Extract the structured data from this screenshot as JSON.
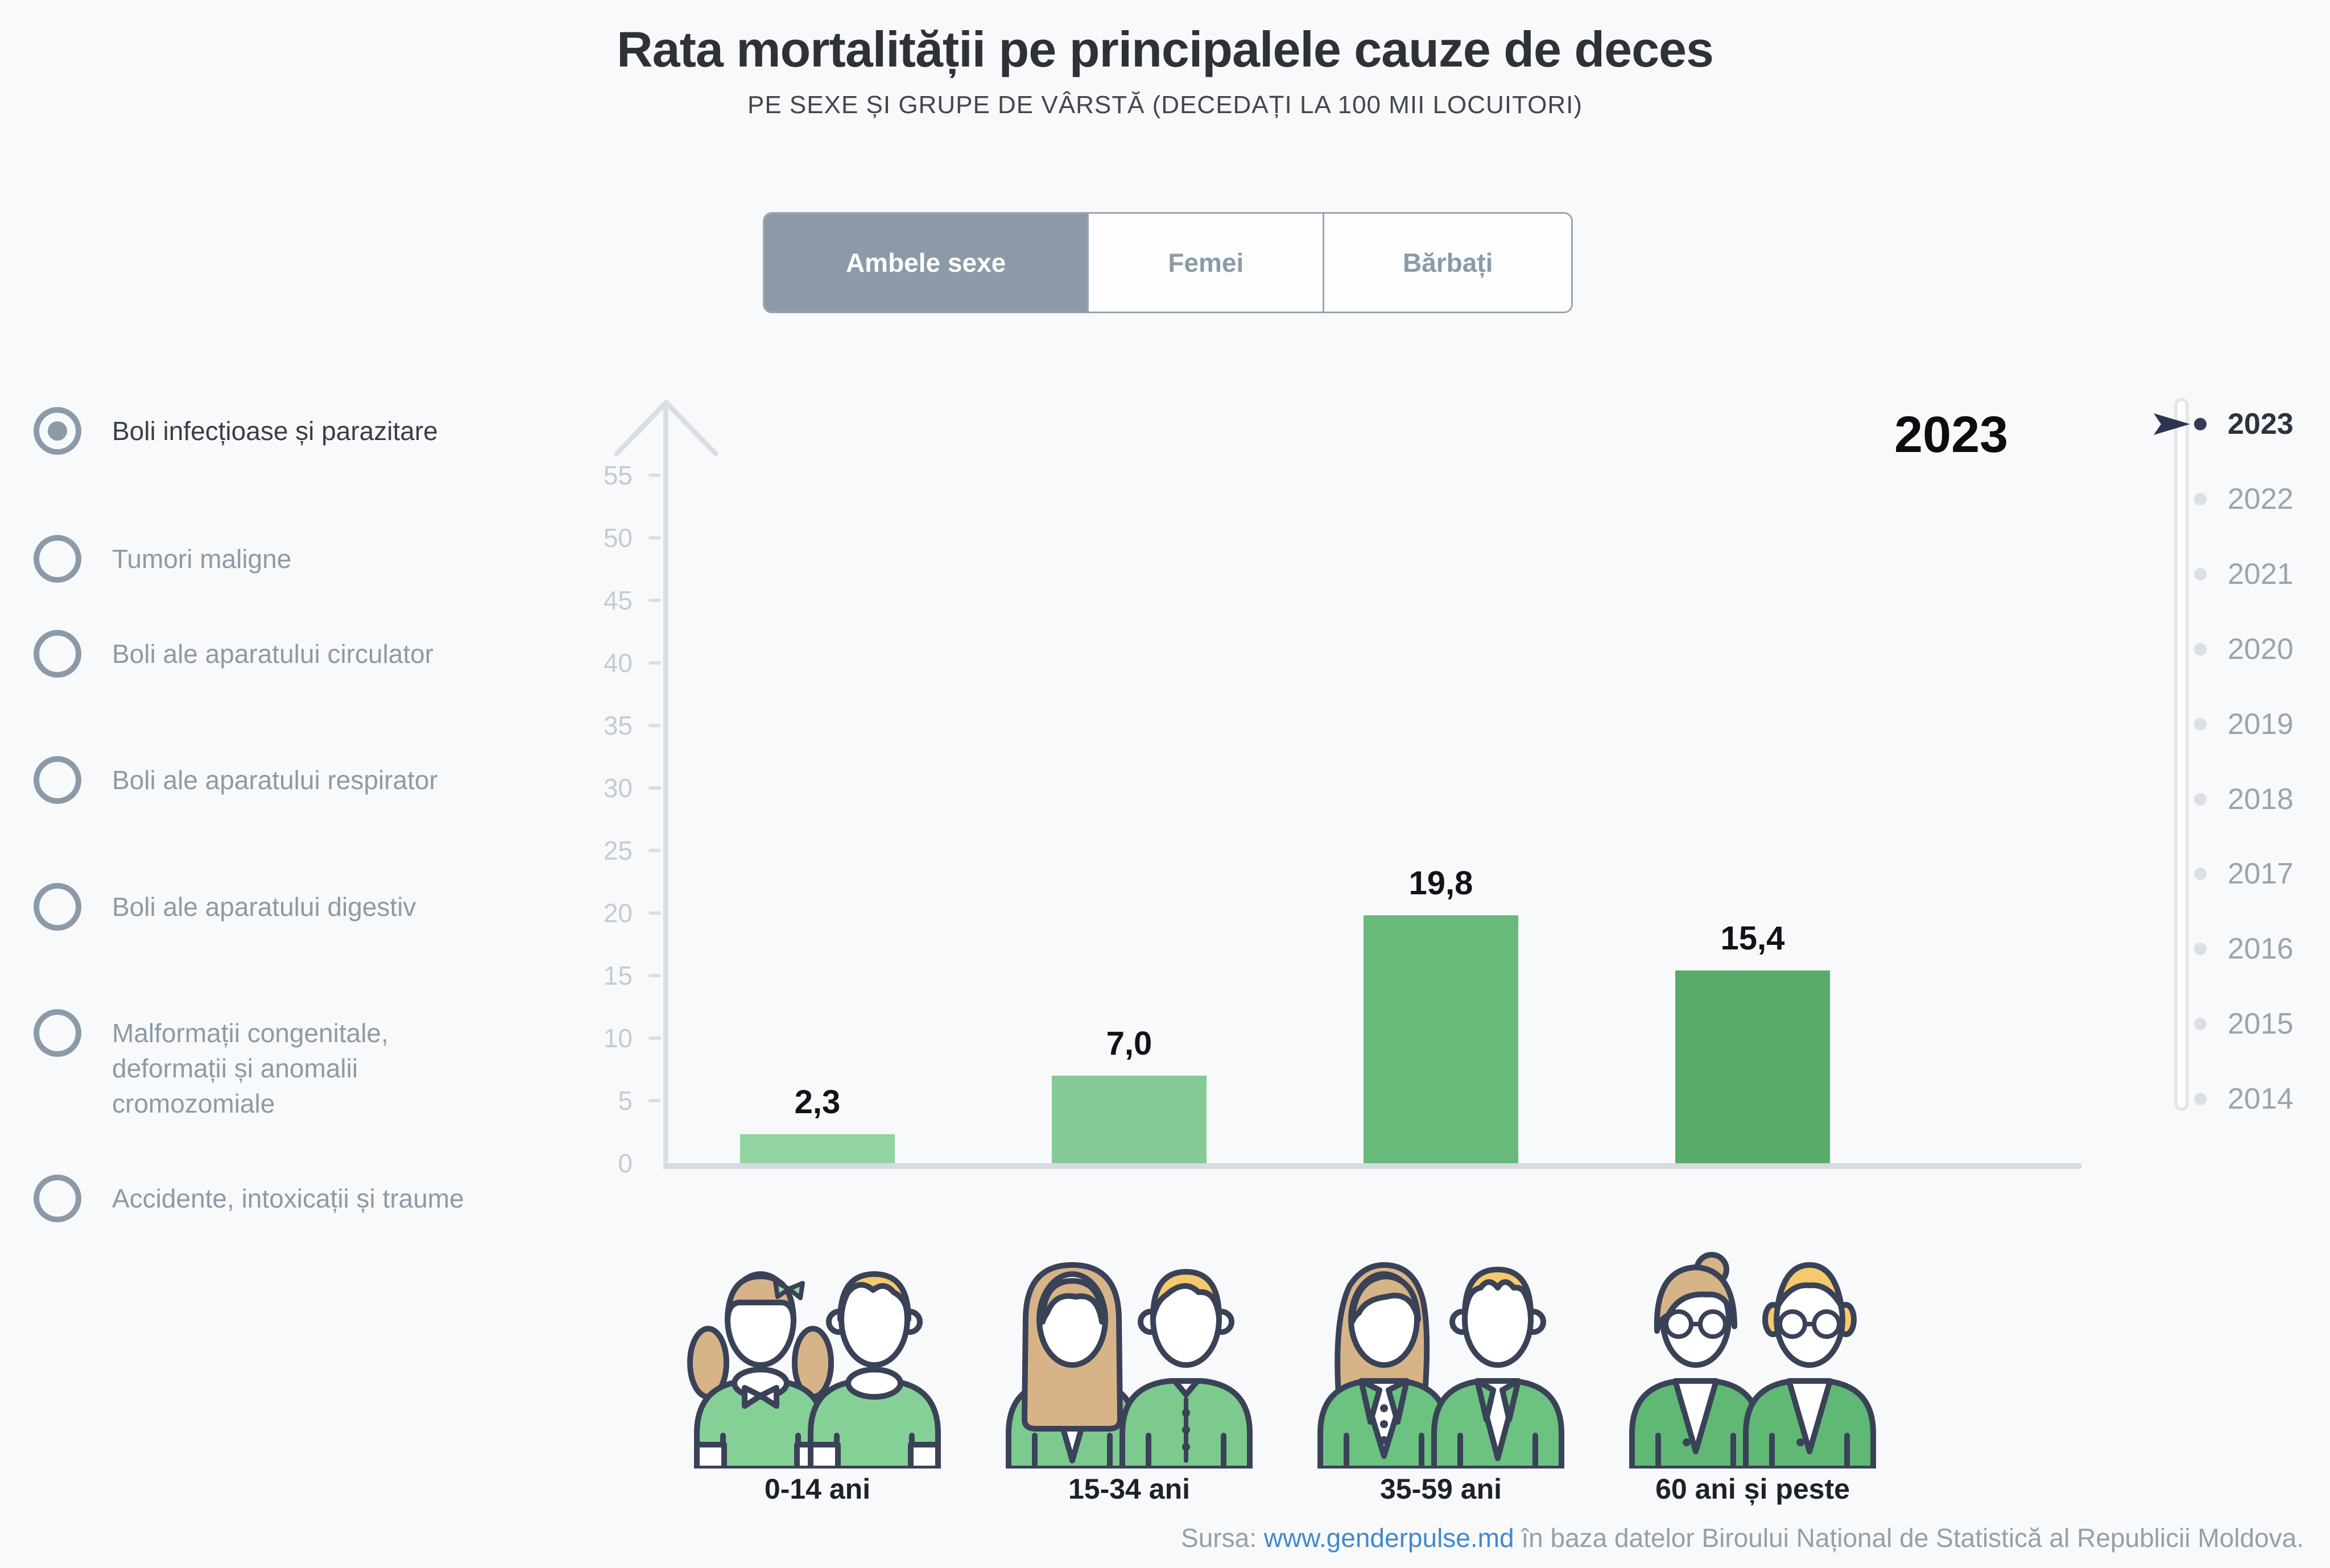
{
  "title": "Rata mortalității pe principalele cauze de deces",
  "subtitle": "PE SEXE ȘI GRUPE DE VÂRSTĂ (DECEDAȚI LA 100 MII LOCUITORI)",
  "tabs": [
    {
      "label": "Ambele sexe",
      "selected": true
    },
    {
      "label": "Femei",
      "selected": false
    },
    {
      "label": "Bărbați",
      "selected": false
    }
  ],
  "causes": [
    {
      "label": "Boli infecțioase și parazitare",
      "selected": true
    },
    {
      "label": "Tumori maligne",
      "selected": false
    },
    {
      "label": "Boli ale aparatului circulator",
      "selected": false
    },
    {
      "label": "Boli ale aparatului respirator",
      "selected": false
    },
    {
      "label": "Boli ale aparatului digestiv",
      "selected": false
    },
    {
      "label": "Malformații congenitale, deformații și anomalii cromozomiale",
      "selected": false
    },
    {
      "label": "Accidente, intoxicații și traume",
      "selected": false
    }
  ],
  "chart_data": {
    "type": "bar",
    "categories": [
      "0-14 ani",
      "15-34 ani",
      "35-59 ani",
      "60 ani și peste"
    ],
    "values": [
      2.3,
      7.0,
      19.8,
      15.4
    ],
    "value_labels": [
      "2,3",
      "7,0",
      "19,8",
      "15,4"
    ],
    "bar_colors": [
      "#92d4a0",
      "#84ca94",
      "#68b97a",
      "#59ab6b"
    ],
    "title": "2023",
    "xlabel": "",
    "ylabel": "",
    "ylim": [
      0,
      55
    ],
    "ytick_step": 5,
    "yticks": [
      0,
      5,
      10,
      15,
      20,
      25,
      30,
      35,
      40,
      45,
      50,
      55
    ],
    "grid": false,
    "legend": false,
    "selected_cause": "Boli infecțioase și parazitare",
    "selected_sex": "Ambele sexe",
    "selected_year": "2023"
  },
  "big_year_label": "2023",
  "year_selector": {
    "selected": "2023",
    "years": [
      "2023",
      "2022",
      "2021",
      "2020",
      "2019",
      "2018",
      "2017",
      "2016",
      "2015",
      "2014"
    ]
  },
  "icons": {
    "groups": [
      "children-pair-icon",
      "young-adults-pair-icon",
      "adults-pair-icon",
      "seniors-pair-icon"
    ]
  },
  "footer": {
    "prefix": "Sursa: ",
    "link": "www.genderpulse.md",
    "suffix": " în baza datelor Biroului Național de Statistică al Republicii Moldova."
  },
  "colors": {
    "accent_slate": "#8c9aa8",
    "link_blue": "#4189cf",
    "axis_gray": "#d9dee4",
    "selected_dark": "#333d55",
    "background": "#f8f9fa"
  }
}
